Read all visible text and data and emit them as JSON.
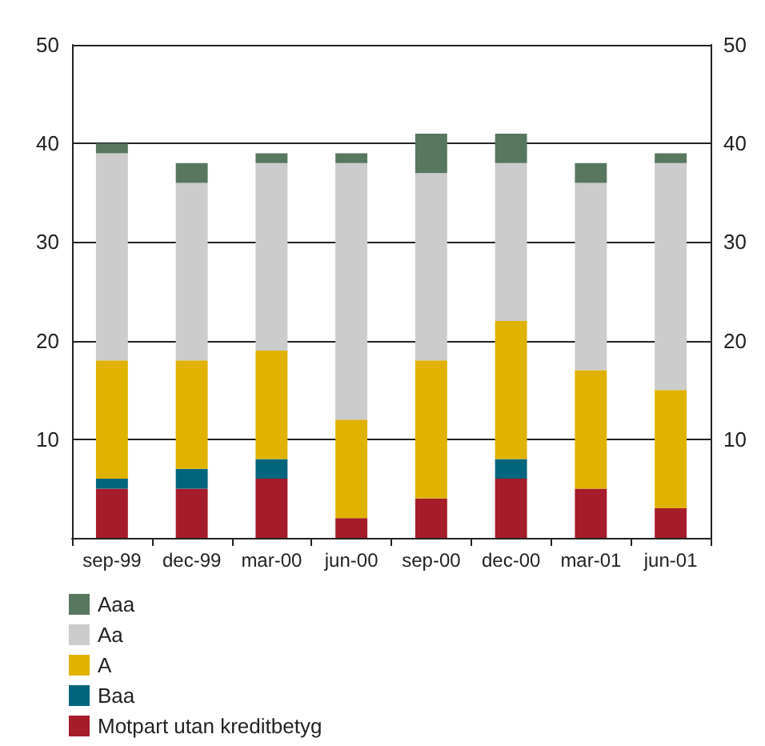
{
  "chart_data": {
    "type": "bar",
    "stacked": true,
    "categories": [
      "sep-99",
      "dec-99",
      "mar-00",
      "jun-00",
      "sep-00",
      "dec-00",
      "mar-01",
      "jun-01"
    ],
    "series": [
      {
        "name": "Motpart utan kreditbetyg",
        "color": "#a51c2a",
        "values": [
          5,
          5,
          6,
          2,
          4,
          6,
          5,
          3
        ]
      },
      {
        "name": "Baa",
        "color": "#00667d",
        "values": [
          1,
          2,
          2,
          0,
          0,
          2,
          0,
          0
        ]
      },
      {
        "name": "A",
        "color": "#e0b300",
        "values": [
          12,
          11,
          11,
          10,
          14,
          14,
          12,
          12
        ]
      },
      {
        "name": "Aa",
        "color": "#cccccc",
        "values": [
          21,
          18,
          19,
          26,
          19,
          16,
          19,
          23
        ]
      },
      {
        "name": "Aaa",
        "color": "#57775e",
        "values": [
          1,
          2,
          1,
          1,
          4,
          3,
          2,
          1
        ]
      }
    ],
    "ylim": [
      0,
      50
    ],
    "yticks": [
      10,
      20,
      30,
      40,
      50
    ],
    "y2lim": [
      0,
      50
    ],
    "y2ticks": [
      10,
      20,
      30,
      40,
      50
    ],
    "grid": "y",
    "legend": "bottom"
  }
}
